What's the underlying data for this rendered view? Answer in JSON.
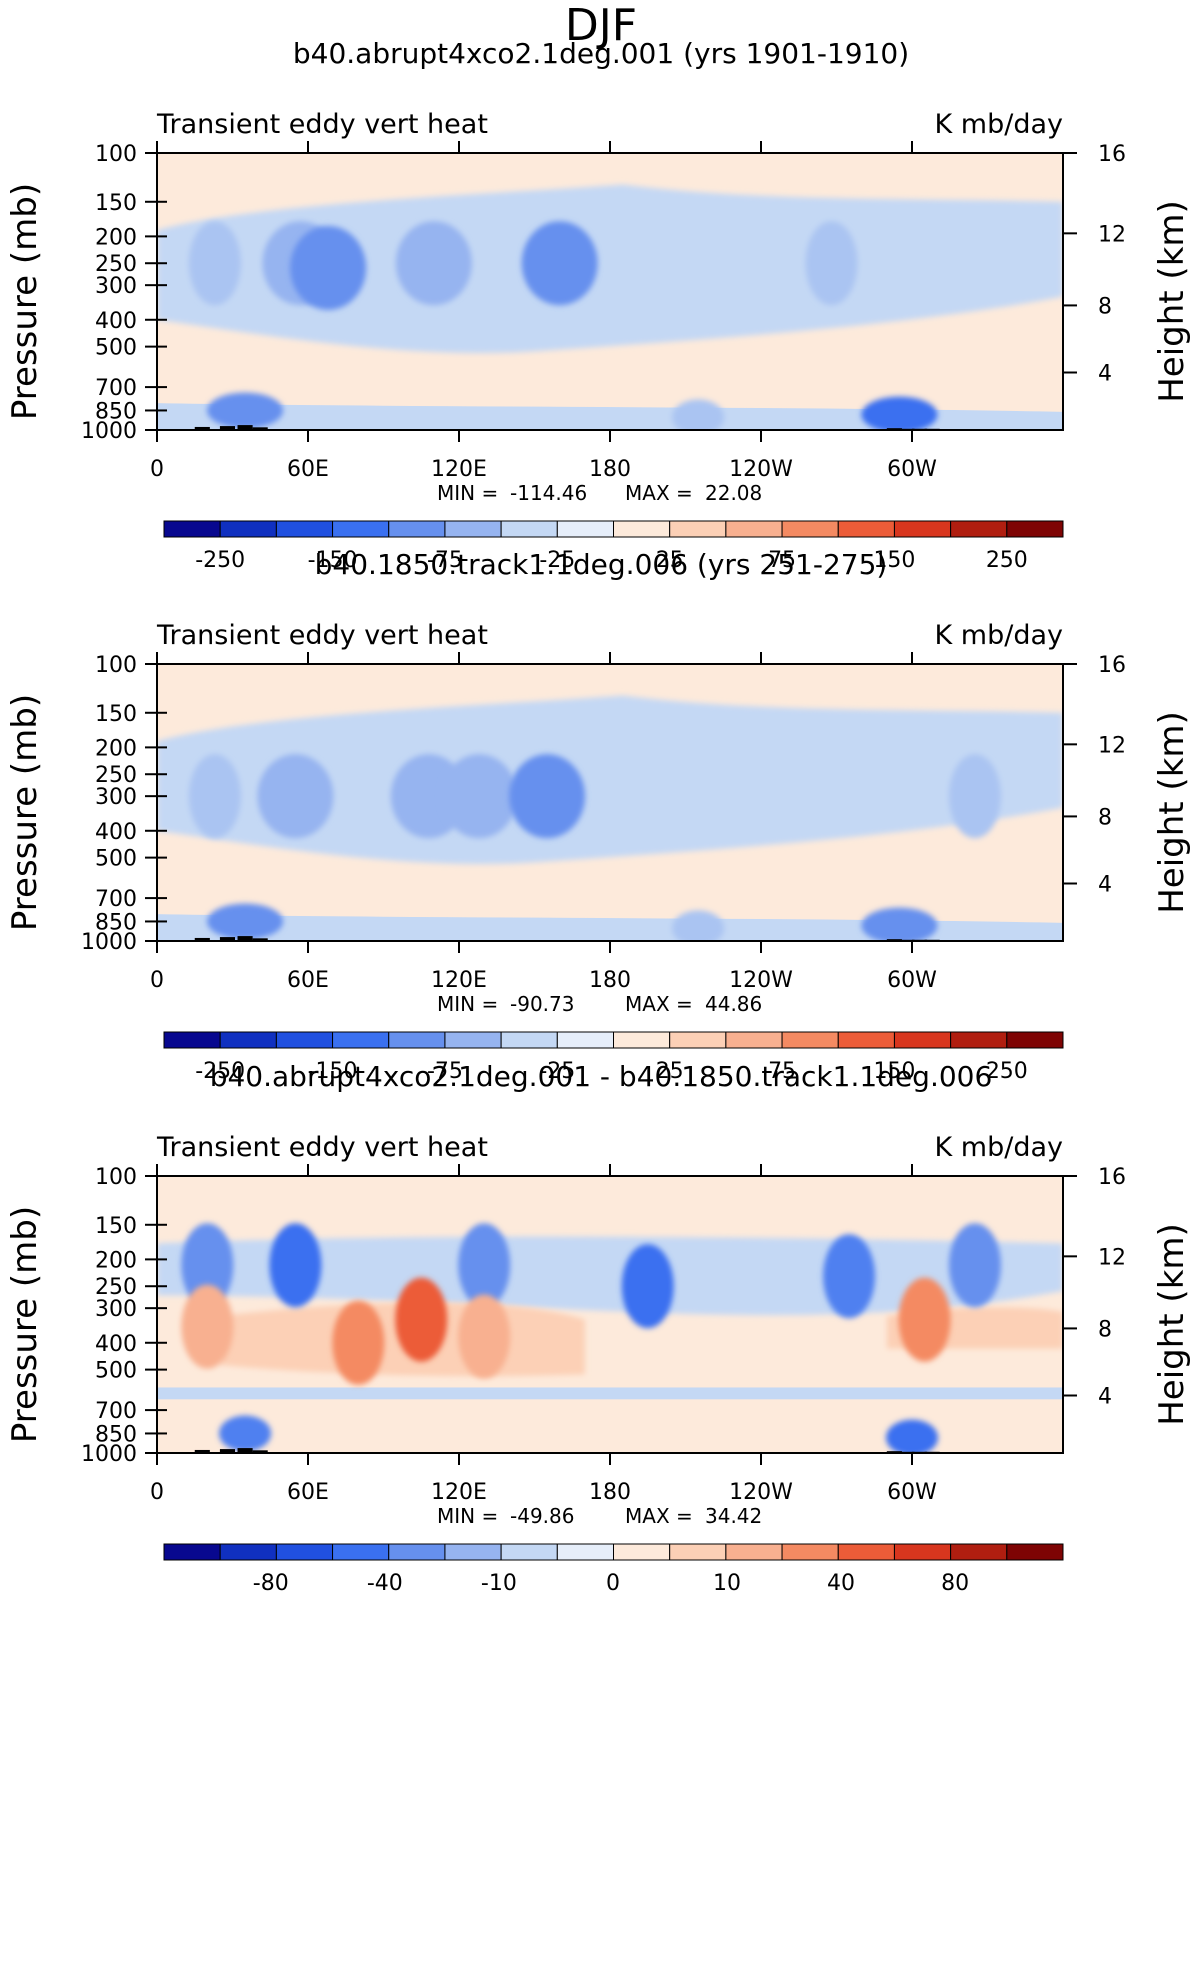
{
  "figure": {
    "title": "DJF"
  },
  "chart_data": [
    {
      "type": "heatmap",
      "title": "b40.abrupt4xco2.1deg.001 (yrs 1901-1910)",
      "subtitle_left": "Transient eddy vert heat",
      "subtitle_right": "K mb/day",
      "ylabel": "Pressure (mb)",
      "ylabel_right": "Height (km)",
      "x_ticks": [
        "0",
        "60E",
        "120E",
        "180",
        "120W",
        "60W"
      ],
      "x_tick_values": [
        0,
        60,
        120,
        180,
        240,
        300
      ],
      "xlim": [
        0,
        360
      ],
      "y_ticks": [
        "100",
        "150",
        "200",
        "250",
        "300",
        "400",
        "500",
        "700",
        "850",
        "1000"
      ],
      "y_tick_values": [
        100,
        150,
        200,
        250,
        300,
        400,
        500,
        700,
        850,
        1000
      ],
      "ylim": [
        1000,
        100
      ],
      "height_ticks": [
        "16",
        "12",
        "8",
        "4"
      ],
      "height_tick_values": [
        16,
        12,
        8,
        4
      ],
      "stats_min_label": "MIN =",
      "stats_min": "-114.46",
      "stats_max_label": "MAX =",
      "stats_max": "22.08",
      "colorbar_labels": [
        "-250",
        "-150",
        "-75",
        "-25",
        "25",
        "75",
        "150",
        "250"
      ],
      "features": [
        {
          "lon": 23,
          "p": 250,
          "value": -25
        },
        {
          "lon": 57,
          "p": 250,
          "value": -50
        },
        {
          "lon": 68,
          "p": 260,
          "value": -75
        },
        {
          "lon": 110,
          "p": 250,
          "value": -50
        },
        {
          "lon": 160,
          "p": 250,
          "value": -75
        },
        {
          "lon": 268,
          "p": 250,
          "value": -25
        },
        {
          "lon": 35,
          "p": 850,
          "value": -75
        },
        {
          "lon": 295,
          "p": 880,
          "value": -100
        },
        {
          "lon": 215,
          "p": 900,
          "value": -25
        }
      ]
    },
    {
      "type": "heatmap",
      "title": "b40.1850.track1.1deg.006 (yrs 251-275)",
      "subtitle_left": "Transient eddy vert heat",
      "subtitle_right": "K mb/day",
      "ylabel": "Pressure (mb)",
      "ylabel_right": "Height (km)",
      "x_ticks": [
        "0",
        "60E",
        "120E",
        "180",
        "120W",
        "60W"
      ],
      "x_tick_values": [
        0,
        60,
        120,
        180,
        240,
        300
      ],
      "xlim": [
        0,
        360
      ],
      "y_ticks": [
        "100",
        "150",
        "200",
        "250",
        "300",
        "400",
        "500",
        "700",
        "850",
        "1000"
      ],
      "y_tick_values": [
        100,
        150,
        200,
        250,
        300,
        400,
        500,
        700,
        850,
        1000
      ],
      "ylim": [
        1000,
        100
      ],
      "height_ticks": [
        "16",
        "12",
        "8",
        "4"
      ],
      "height_tick_values": [
        16,
        12,
        8,
        4
      ],
      "stats_min_label": "MIN =",
      "stats_min": "-90.73",
      "stats_max_label": "MAX =",
      "stats_max": "44.86",
      "colorbar_labels": [
        "-250",
        "-150",
        "-75",
        "-25",
        "25",
        "75",
        "150",
        "250"
      ],
      "features": [
        {
          "lon": 23,
          "p": 300,
          "value": -25
        },
        {
          "lon": 55,
          "p": 300,
          "value": -50
        },
        {
          "lon": 108,
          "p": 300,
          "value": -50
        },
        {
          "lon": 128,
          "p": 300,
          "value": -50
        },
        {
          "lon": 155,
          "p": 300,
          "value": -75
        },
        {
          "lon": 325,
          "p": 300,
          "value": -25
        },
        {
          "lon": 35,
          "p": 850,
          "value": -75
        },
        {
          "lon": 295,
          "p": 880,
          "value": -75
        },
        {
          "lon": 215,
          "p": 900,
          "value": -25
        }
      ]
    },
    {
      "type": "heatmap",
      "title": "b40.abrupt4xco2.1deg.001 - b40.1850.track1.1deg.006",
      "subtitle_left": "Transient eddy vert heat",
      "subtitle_right": "K mb/day",
      "ylabel": "Pressure (mb)",
      "ylabel_right": "Height (km)",
      "x_ticks": [
        "0",
        "60E",
        "120E",
        "180",
        "120W",
        "60W"
      ],
      "x_tick_values": [
        0,
        60,
        120,
        180,
        240,
        300
      ],
      "xlim": [
        0,
        360
      ],
      "y_ticks": [
        "100",
        "150",
        "200",
        "250",
        "300",
        "400",
        "500",
        "700",
        "850",
        "1000"
      ],
      "y_tick_values": [
        100,
        150,
        200,
        250,
        300,
        400,
        500,
        700,
        850,
        1000
      ],
      "ylim": [
        1000,
        100
      ],
      "height_ticks": [
        "16",
        "12",
        "8",
        "4"
      ],
      "height_tick_values": [
        16,
        12,
        8,
        4
      ],
      "stats_min_label": "MIN =",
      "stats_min": "-49.86",
      "stats_max_label": "MAX =",
      "stats_max": "34.42",
      "colorbar_labels": [
        "-80",
        "-40",
        "-10",
        "0",
        "10",
        "40",
        "80"
      ],
      "features": [
        {
          "lon": 20,
          "p": 210,
          "value": -20
        },
        {
          "lon": 55,
          "p": 210,
          "value": -40
        },
        {
          "lon": 130,
          "p": 210,
          "value": -20
        },
        {
          "lon": 195,
          "p": 250,
          "value": -40
        },
        {
          "lon": 275,
          "p": 230,
          "value": -30
        },
        {
          "lon": 325,
          "p": 210,
          "value": -20
        },
        {
          "lon": 105,
          "p": 330,
          "value": 30
        },
        {
          "lon": 80,
          "p": 400,
          "value": 20
        },
        {
          "lon": 130,
          "p": 380,
          "value": 15
        },
        {
          "lon": 305,
          "p": 330,
          "value": 20
        },
        {
          "lon": 20,
          "p": 350,
          "value": 10
        },
        {
          "lon": 300,
          "p": 880,
          "value": -40
        },
        {
          "lon": 35,
          "p": 850,
          "value": -30
        }
      ]
    }
  ]
}
